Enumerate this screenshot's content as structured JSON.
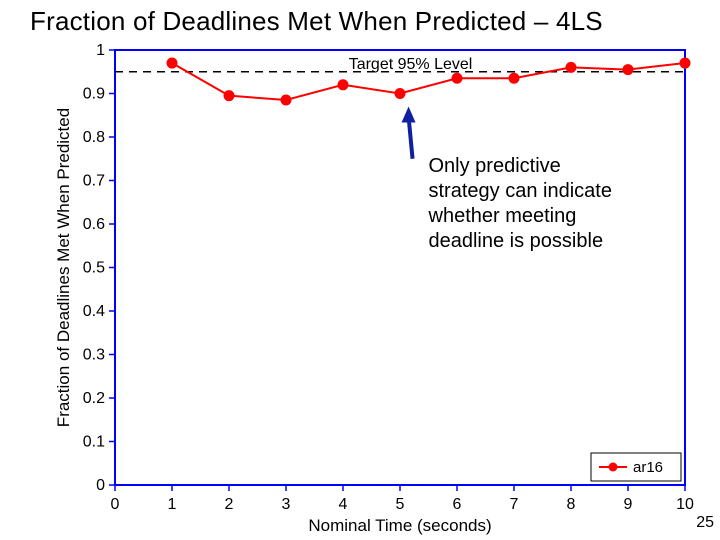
{
  "title": "Fraction of Deadlines Met When Predicted – 4LS",
  "slide_number": "25",
  "annotation_text_line1": "Only predictive",
  "annotation_text_line2": "strategy can indicate",
  "annotation_text_line3": "whether meeting",
  "annotation_text_line4": "deadline is possible",
  "target_label": "Target 95% Level",
  "chart": {
    "type": "line",
    "xlabel": "Nominal Time (seconds)",
    "ylabel": "Fraction of Deadlines Met When Predicted",
    "xlim": [
      0,
      10
    ],
    "ylim": [
      0,
      1
    ],
    "xtick_step": 1,
    "ytick_step": 0.1,
    "series": [
      {
        "name": "ar16",
        "color": "#ff0000",
        "line_width": 2,
        "marker": "circle",
        "marker_size": 5,
        "x": [
          1,
          2,
          3,
          4,
          5,
          6,
          7,
          8,
          9,
          10
        ],
        "y": [
          0.97,
          0.895,
          0.885,
          0.92,
          0.9,
          0.935,
          0.935,
          0.96,
          0.955,
          0.97
        ]
      }
    ],
    "target_line": {
      "y": 0.95,
      "style": "dashed",
      "color": "#000000",
      "width": 1.5
    },
    "arrow": {
      "x": 5.15,
      "y_from": 0.87,
      "y_to": 0.75,
      "color": "#1020a0",
      "width": 4
    },
    "legend": {
      "items": [
        {
          "label": "ar16",
          "color": "#ff0000",
          "marker": "circle"
        }
      ],
      "position": "bottom-right"
    },
    "axis_color": "#0000ff",
    "axis_width": 2,
    "background_color": "#ffffff",
    "tick_fontsize": 16,
    "label_fontsize": 17,
    "title_fontsize": 26
  }
}
